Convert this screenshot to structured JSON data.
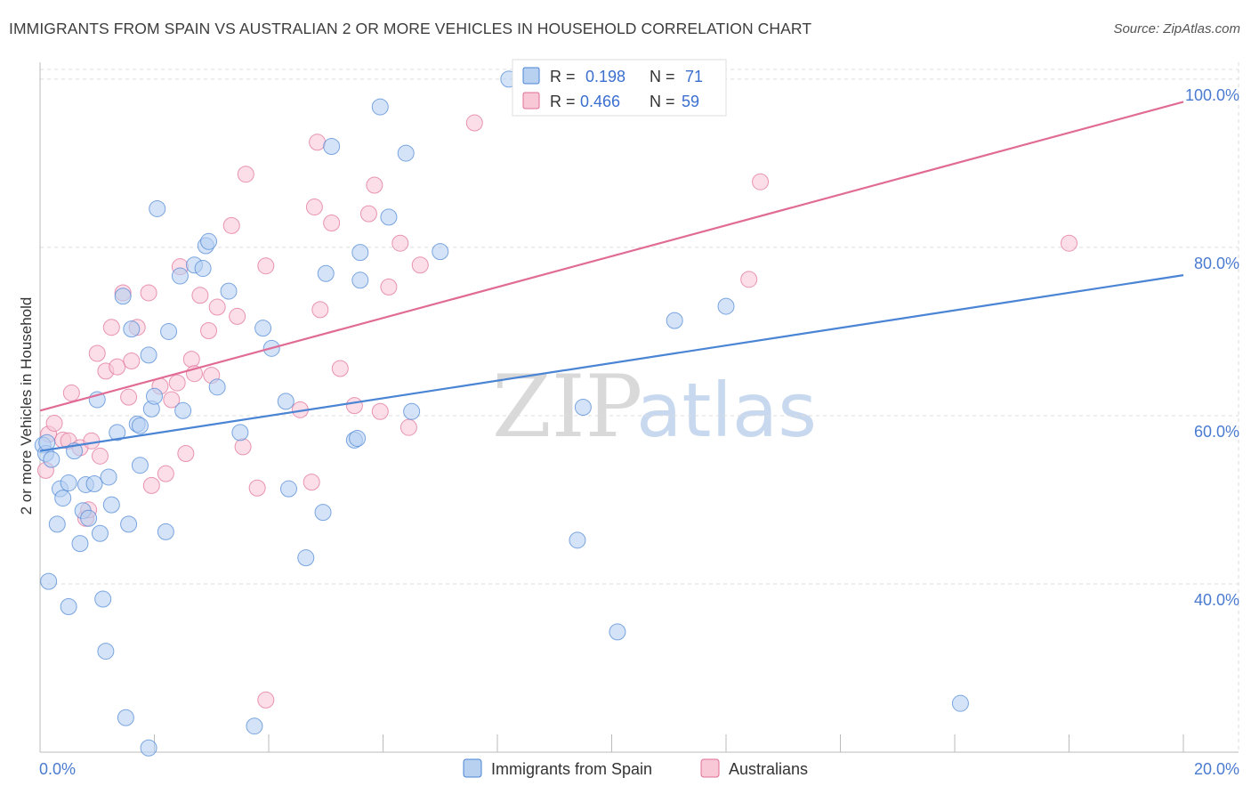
{
  "title": "IMMIGRANTS FROM SPAIN VS AUSTRALIAN 2 OR MORE VEHICLES IN HOUSEHOLD CORRELATION CHART",
  "source": "Source: ZipAtlas.com",
  "watermark": {
    "zip": "ZIP",
    "atlas": "atlas"
  },
  "colors": {
    "blue": "#4a84d4",
    "blue_fill": "#b8d1f1",
    "pink": "#e06c95",
    "pink_fill": "#f8c8d7",
    "grid": "#dddddd",
    "axis": "#bbbbbb"
  },
  "legend_top": {
    "rows": [
      {
        "r_label": "R =",
        "r_value": "0.198",
        "n_label": "N =",
        "n_value": "71"
      },
      {
        "r_label": "R =",
        "r_value": "0.466",
        "n_label": "N =",
        "n_value": "59"
      }
    ]
  },
  "legend_bottom": [
    "Immigrants from Spain",
    "Australians"
  ],
  "chart_data": {
    "type": "scatter",
    "title": "IMMIGRANTS FROM SPAIN VS AUSTRALIAN 2 OR MORE VEHICLES IN HOUSEHOLD CORRELATION CHART",
    "xlabel": "",
    "ylabel": "2 or more Vehicles in Household",
    "xlim": [
      0,
      20
    ],
    "ylim": [
      20,
      102
    ],
    "x_tick_labels": [
      "0.0%",
      "20.0%"
    ],
    "y_ticks": [
      40,
      60,
      80,
      100
    ],
    "y_tick_labels": [
      "40.0%",
      "60.0%",
      "80.0%",
      "100.0%"
    ],
    "grid": true,
    "legend_position": "bottom",
    "series": [
      {
        "name": "Immigrants from Spain",
        "color": "#4a84d4",
        "r": 0.198,
        "n": 71,
        "trend": {
          "x": [
            0,
            20
          ],
          "y": [
            55.8,
            76.7
          ]
        },
        "points": [
          [
            0.05,
            56.5
          ],
          [
            0.1,
            55.5
          ],
          [
            0.12,
            56.8
          ],
          [
            0.2,
            54.8
          ],
          [
            0.15,
            40.3
          ],
          [
            0.3,
            47.1
          ],
          [
            0.35,
            51.3
          ],
          [
            0.4,
            50.2
          ],
          [
            0.5,
            37.3
          ],
          [
            0.5,
            52.0
          ],
          [
            0.6,
            55.8
          ],
          [
            0.7,
            44.8
          ],
          [
            0.75,
            48.7
          ],
          [
            0.8,
            51.8
          ],
          [
            0.85,
            47.8
          ],
          [
            0.95,
            51.9
          ],
          [
            1.0,
            61.9
          ],
          [
            1.05,
            46.0
          ],
          [
            1.1,
            38.2
          ],
          [
            1.15,
            32.0
          ],
          [
            1.2,
            52.7
          ],
          [
            1.25,
            49.4
          ],
          [
            1.35,
            58.0
          ],
          [
            1.45,
            74.2
          ],
          [
            1.5,
            24.1
          ],
          [
            1.55,
            47.1
          ],
          [
            1.6,
            70.3
          ],
          [
            1.7,
            59.0
          ],
          [
            1.75,
            58.8
          ],
          [
            1.75,
            54.1
          ],
          [
            1.9,
            67.2
          ],
          [
            1.9,
            20.5
          ],
          [
            1.95,
            60.8
          ],
          [
            2.0,
            62.3
          ],
          [
            2.05,
            84.6
          ],
          [
            2.2,
            46.2
          ],
          [
            2.25,
            70.0
          ],
          [
            2.45,
            76.6
          ],
          [
            2.5,
            60.6
          ],
          [
            2.7,
            77.9
          ],
          [
            2.85,
            77.5
          ],
          [
            2.9,
            80.2
          ],
          [
            2.95,
            80.7
          ],
          [
            3.1,
            63.4
          ],
          [
            3.3,
            74.8
          ],
          [
            3.5,
            58.0
          ],
          [
            3.75,
            23.1
          ],
          [
            3.9,
            70.4
          ],
          [
            4.05,
            68.0
          ],
          [
            4.3,
            61.7
          ],
          [
            4.35,
            51.3
          ],
          [
            4.65,
            43.1
          ],
          [
            4.95,
            48.5
          ],
          [
            5.0,
            76.9
          ],
          [
            5.1,
            92.0
          ],
          [
            5.5,
            57.1
          ],
          [
            5.55,
            57.3
          ],
          [
            5.6,
            79.4
          ],
          [
            5.6,
            76.1
          ],
          [
            5.95,
            96.7
          ],
          [
            6.1,
            83.6
          ],
          [
            6.4,
            91.2
          ],
          [
            6.5,
            60.5
          ],
          [
            7.0,
            79.5
          ],
          [
            8.2,
            100.0
          ],
          [
            9.4,
            45.2
          ],
          [
            9.5,
            61.0
          ],
          [
            10.1,
            34.3
          ],
          [
            11.1,
            71.3
          ],
          [
            12.0,
            73.0
          ],
          [
            16.1,
            25.8
          ]
        ]
      },
      {
        "name": "Australians",
        "color": "#e06c95",
        "r": 0.466,
        "n": 59,
        "trend": {
          "x": [
            0,
            20
          ],
          "y": [
            60.6,
            97.3
          ]
        },
        "points": [
          [
            0.1,
            53.5
          ],
          [
            0.15,
            57.8
          ],
          [
            0.25,
            59.1
          ],
          [
            0.4,
            57.1
          ],
          [
            0.5,
            57.0
          ],
          [
            0.55,
            62.7
          ],
          [
            0.7,
            56.2
          ],
          [
            0.8,
            47.8
          ],
          [
            0.85,
            48.8
          ],
          [
            0.9,
            57.0
          ],
          [
            1.0,
            67.4
          ],
          [
            1.05,
            55.2
          ],
          [
            1.15,
            65.3
          ],
          [
            1.25,
            70.5
          ],
          [
            1.35,
            65.8
          ],
          [
            1.45,
            74.6
          ],
          [
            1.55,
            62.2
          ],
          [
            1.6,
            66.5
          ],
          [
            1.7,
            70.5
          ],
          [
            1.9,
            74.6
          ],
          [
            1.95,
            51.7
          ],
          [
            2.1,
            63.5
          ],
          [
            2.2,
            53.1
          ],
          [
            2.3,
            61.9
          ],
          [
            2.4,
            63.9
          ],
          [
            2.45,
            77.7
          ],
          [
            2.55,
            55.5
          ],
          [
            2.65,
            66.7
          ],
          [
            2.7,
            65.0
          ],
          [
            2.8,
            74.3
          ],
          [
            2.95,
            70.1
          ],
          [
            3.0,
            64.8
          ],
          [
            3.1,
            72.9
          ],
          [
            3.35,
            82.6
          ],
          [
            3.45,
            71.8
          ],
          [
            3.55,
            56.3
          ],
          [
            3.6,
            88.7
          ],
          [
            3.8,
            51.4
          ],
          [
            3.95,
            77.8
          ],
          [
            3.95,
            26.2
          ],
          [
            4.55,
            60.7
          ],
          [
            4.75,
            52.1
          ],
          [
            4.8,
            84.8
          ],
          [
            4.85,
            92.5
          ],
          [
            4.9,
            72.6
          ],
          [
            5.1,
            82.9
          ],
          [
            5.25,
            65.6
          ],
          [
            5.5,
            61.2
          ],
          [
            5.75,
            84.0
          ],
          [
            5.85,
            87.4
          ],
          [
            5.95,
            60.5
          ],
          [
            6.1,
            75.3
          ],
          [
            6.3,
            80.5
          ],
          [
            6.45,
            58.6
          ],
          [
            6.65,
            77.9
          ],
          [
            7.6,
            94.8
          ],
          [
            12.4,
            76.2
          ],
          [
            12.6,
            87.8
          ],
          [
            18.0,
            80.5
          ]
        ]
      }
    ]
  }
}
